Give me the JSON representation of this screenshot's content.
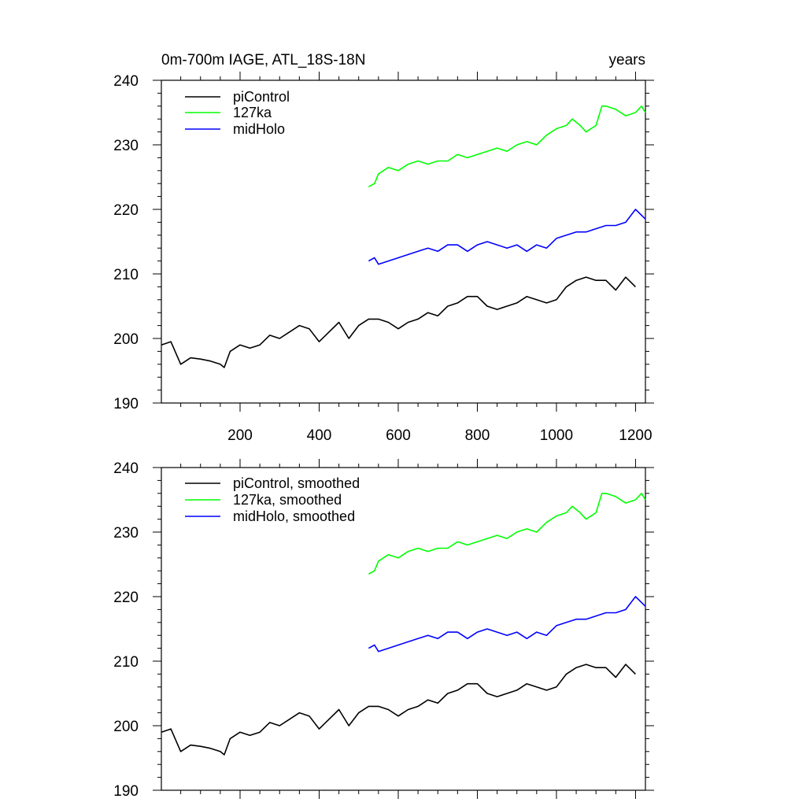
{
  "chart_data": [
    {
      "type": "line",
      "title": "0m-700m IAGE, ATL_18S-18N",
      "units_label": "years",
      "xlabel": "",
      "ylabel": "",
      "xlim": [
        1,
        1225
      ],
      "ylim": [
        190,
        240
      ],
      "yticks": [
        "190",
        "200",
        "210",
        "220",
        "230",
        "240"
      ],
      "xticks": [
        "200",
        "400",
        "600",
        "800",
        "1000",
        "1200"
      ],
      "legend_position": "top-left",
      "series": [
        {
          "name": "piControl",
          "color": "#000000",
          "x": [
            1,
            25,
            50,
            75,
            100,
            125,
            150,
            160,
            175,
            200,
            225,
            250,
            275,
            300,
            325,
            350,
            375,
            400,
            425,
            450,
            475,
            500,
            525,
            550,
            575,
            600,
            625,
            650,
            675,
            700,
            725,
            750,
            775,
            800,
            825,
            850,
            875,
            900,
            925,
            950,
            975,
            1000,
            1025,
            1050,
            1075,
            1100,
            1125,
            1150,
            1175,
            1200
          ],
          "values": [
            199,
            199.5,
            196,
            197,
            196.8,
            196.5,
            196,
            195.5,
            198,
            199,
            198.5,
            199,
            200.5,
            200,
            201,
            202,
            201.5,
            199.5,
            201,
            202.5,
            200,
            202,
            203,
            203,
            202.5,
            201.5,
            202.5,
            203,
            204,
            203.5,
            205,
            205.5,
            206.5,
            206.5,
            205,
            204.5,
            205,
            205.5,
            206.5,
            206,
            205.5,
            206,
            208,
            209,
            209.5,
            209,
            209,
            207.5,
            209.5,
            208
          ]
        },
        {
          "name": "127ka",
          "color": "#00ff00",
          "x": [
            525,
            540,
            550,
            575,
            600,
            625,
            650,
            675,
            700,
            725,
            750,
            775,
            800,
            825,
            850,
            875,
            900,
            925,
            950,
            975,
            1000,
            1025,
            1040,
            1060,
            1075,
            1100,
            1115,
            1125,
            1150,
            1175,
            1200,
            1215,
            1225
          ],
          "values": [
            223.5,
            224,
            225.5,
            226.5,
            226,
            227,
            227.5,
            227,
            227.5,
            227.5,
            228.5,
            228,
            228.5,
            229,
            229.5,
            229,
            230,
            230.5,
            230,
            231.5,
            232.5,
            233,
            234,
            233,
            232,
            233,
            236,
            236,
            235.5,
            234.5,
            235,
            236,
            235
          ]
        },
        {
          "name": "midHolo",
          "color": "#0000ff",
          "x": [
            525,
            540,
            550,
            575,
            600,
            625,
            650,
            675,
            700,
            725,
            750,
            775,
            800,
            825,
            850,
            875,
            900,
            925,
            950,
            975,
            1000,
            1025,
            1050,
            1075,
            1100,
            1125,
            1150,
            1175,
            1200,
            1225
          ],
          "values": [
            212,
            212.5,
            211.5,
            212,
            212.5,
            213,
            213.5,
            214,
            213.5,
            214.5,
            214.5,
            213.5,
            214.5,
            215,
            214.5,
            214,
            214.5,
            213.5,
            214.5,
            214,
            215.5,
            216,
            216.5,
            216.5,
            217,
            217.5,
            217.5,
            218,
            220,
            218.5
          ]
        }
      ]
    },
    {
      "type": "line",
      "title": "",
      "xlabel": "",
      "ylabel": "",
      "xlim": [
        1,
        1225
      ],
      "ylim": [
        190,
        240
      ],
      "yticks": [
        "190",
        "200",
        "210",
        "220",
        "230",
        "240"
      ],
      "legend_position": "top-left",
      "series": [
        {
          "name": "piControl, smoothed",
          "color": "#000000",
          "x": [
            1,
            25,
            50,
            75,
            100,
            125,
            150,
            160,
            175,
            200,
            225,
            250,
            275,
            300,
            325,
            350,
            375,
            400,
            425,
            450,
            475,
            500,
            525,
            550,
            575,
            600,
            625,
            650,
            675,
            700,
            725,
            750,
            775,
            800,
            825,
            850,
            875,
            900,
            925,
            950,
            975,
            1000,
            1025,
            1050,
            1075,
            1100,
            1125,
            1150,
            1175,
            1200
          ],
          "values": [
            199,
            199.5,
            196,
            197,
            196.8,
            196.5,
            196,
            195.5,
            198,
            199,
            198.5,
            199,
            200.5,
            200,
            201,
            202,
            201.5,
            199.5,
            201,
            202.5,
            200,
            202,
            203,
            203,
            202.5,
            201.5,
            202.5,
            203,
            204,
            203.5,
            205,
            205.5,
            206.5,
            206.5,
            205,
            204.5,
            205,
            205.5,
            206.5,
            206,
            205.5,
            206,
            208,
            209,
            209.5,
            209,
            209,
            207.5,
            209.5,
            208
          ]
        },
        {
          "name": "127ka, smoothed",
          "color": "#00ff00",
          "x": [
            525,
            540,
            550,
            575,
            600,
            625,
            650,
            675,
            700,
            725,
            750,
            775,
            800,
            825,
            850,
            875,
            900,
            925,
            950,
            975,
            1000,
            1025,
            1040,
            1060,
            1075,
            1100,
            1115,
            1125,
            1150,
            1175,
            1200,
            1215,
            1225
          ],
          "values": [
            223.5,
            224,
            225.5,
            226.5,
            226,
            227,
            227.5,
            227,
            227.5,
            227.5,
            228.5,
            228,
            228.5,
            229,
            229.5,
            229,
            230,
            230.5,
            230,
            231.5,
            232.5,
            233,
            234,
            233,
            232,
            233,
            236,
            236,
            235.5,
            234.5,
            235,
            236,
            235
          ]
        },
        {
          "name": "midHolo, smoothed",
          "color": "#0000ff",
          "x": [
            525,
            540,
            550,
            575,
            600,
            625,
            650,
            675,
            700,
            725,
            750,
            775,
            800,
            825,
            850,
            875,
            900,
            925,
            950,
            975,
            1000,
            1025,
            1050,
            1075,
            1100,
            1125,
            1150,
            1175,
            1200,
            1225
          ],
          "values": [
            212,
            212.5,
            211.5,
            212,
            212.5,
            213,
            213.5,
            214,
            213.5,
            214.5,
            214.5,
            213.5,
            214.5,
            215,
            214.5,
            214,
            214.5,
            213.5,
            214.5,
            214,
            215.5,
            216,
            216.5,
            216.5,
            217,
            217.5,
            217.5,
            218,
            220,
            218.5
          ]
        }
      ]
    }
  ]
}
